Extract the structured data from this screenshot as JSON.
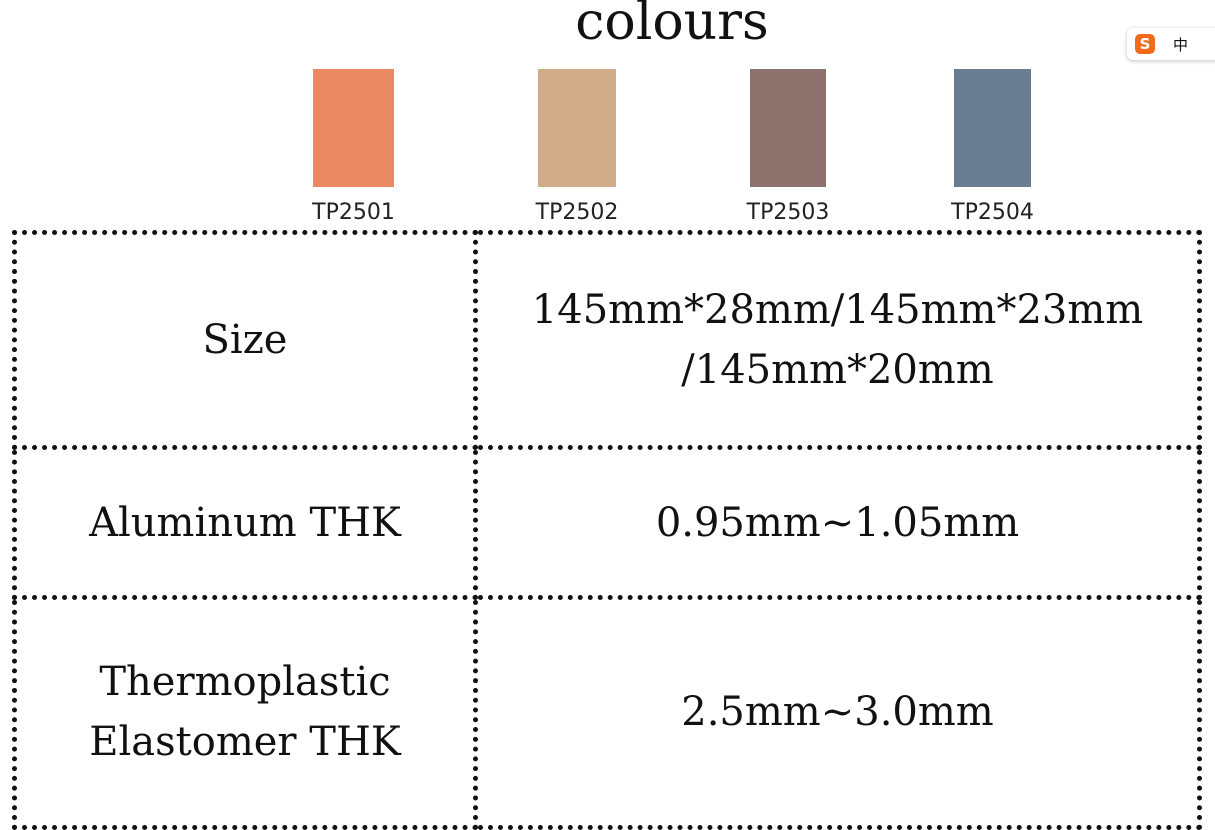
{
  "title": "colours",
  "swatches": [
    {
      "label": "TP2501",
      "color": "#ec8965"
    },
    {
      "label": "TP2502",
      "color": "#d0ad88"
    },
    {
      "label": "TP2503",
      "color": "#8c716c"
    },
    {
      "label": "TP2504",
      "color": "#6a7c92"
    }
  ],
  "table": {
    "rows": [
      [
        "Size",
        "145mm*28mm/145mm*23mm /145mm*20mm"
      ],
      [
        "Aluminum THK",
        "0.95mm~1.05mm"
      ],
      [
        "Thermoplastic Elastomer THK",
        "2.5mm~3.0mm"
      ]
    ]
  },
  "ime": {
    "label": "中"
  }
}
